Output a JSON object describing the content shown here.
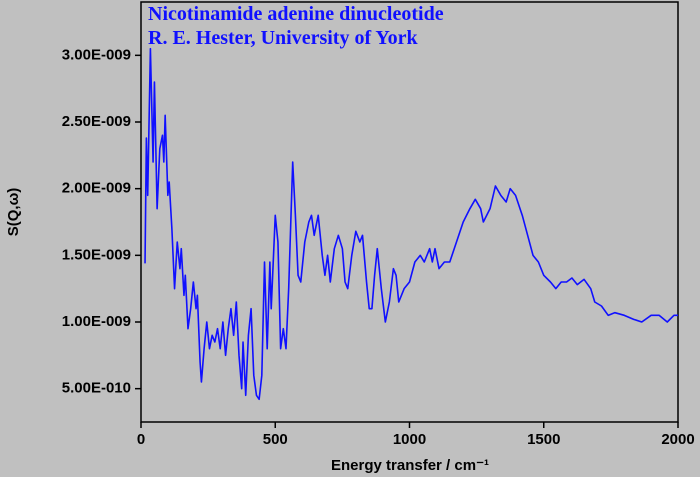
{
  "chart_data": {
    "type": "line",
    "annotations": [
      "Nicotinamide adenine dinucleotide",
      "R. E. Hester, University of York"
    ],
    "x_label": "Energy transfer / cm⁻¹",
    "y_label": "S(Q,ω)",
    "xlim": [
      0,
      2000
    ],
    "ylim": [
      2.5e-10,
      3.4e-09
    ],
    "xticks": [
      0,
      500,
      1000,
      1500,
      2000
    ],
    "yticks": [
      {
        "value": 5e-10,
        "label": "5.00E-010"
      },
      {
        "value": 1e-09,
        "label": "1.00E-009"
      },
      {
        "value": 1.5e-09,
        "label": "1.50E-009"
      },
      {
        "value": 2e-09,
        "label": "2.00E-009"
      },
      {
        "value": 2.5e-09,
        "label": "2.50E-009"
      },
      {
        "value": 3e-09,
        "label": "3.00E-009"
      }
    ],
    "series": [
      {
        "color": "#1010ff",
        "x": [
          15,
          20,
          25,
          35,
          45,
          50,
          60,
          70,
          80,
          85,
          90,
          100,
          105,
          115,
          125,
          135,
          145,
          150,
          160,
          165,
          175,
          185,
          195,
          205,
          210,
          220,
          225,
          235,
          245,
          255,
          265,
          275,
          285,
          295,
          305,
          315,
          325,
          335,
          345,
          355,
          365,
          375,
          380,
          390,
          400,
          410,
          420,
          430,
          440,
          450,
          460,
          470,
          480,
          485,
          500,
          510,
          520,
          530,
          540,
          550,
          565,
          575,
          585,
          595,
          610,
          625,
          635,
          645,
          660,
          675,
          685,
          695,
          705,
          720,
          735,
          750,
          760,
          770,
          785,
          800,
          815,
          825,
          840,
          850,
          860,
          870,
          880,
          895,
          910,
          925,
          940,
          950,
          960,
          980,
          1000,
          1020,
          1040,
          1055,
          1075,
          1085,
          1095,
          1110,
          1130,
          1150,
          1175,
          1200,
          1225,
          1245,
          1265,
          1275,
          1300,
          1320,
          1340,
          1360,
          1375,
          1395,
          1420,
          1440,
          1460,
          1480,
          1500,
          1525,
          1545,
          1565,
          1585,
          1605,
          1625,
          1650,
          1675,
          1690,
          1715,
          1740,
          1765,
          1800,
          1835,
          1865,
          1900,
          1930,
          1960,
          1985,
          2000
        ],
        "values": [
          1.44e-09,
          2.38e-09,
          1.95e-09,
          3.05e-09,
          2.2e-09,
          2.8e-09,
          1.85e-09,
          2.3e-09,
          2.4e-09,
          2.2e-09,
          2.55e-09,
          1.95e-09,
          2.05e-09,
          1.7e-09,
          1.25e-09,
          1.6e-09,
          1.4e-09,
          1.55e-09,
          1.2e-09,
          1.35e-09,
          9.5e-10,
          1.1e-09,
          1.3e-09,
          1.1e-09,
          1.2e-09,
          7e-10,
          5.5e-10,
          8e-10,
          1e-09,
          8e-10,
          9e-10,
          8.5e-10,
          9.5e-10,
          8e-10,
          1e-09,
          7.5e-10,
          9.5e-10,
          1.1e-09,
          9e-10,
          1.15e-09,
          7.5e-10,
          5e-10,
          8.5e-10,
          4.5e-10,
          9e-10,
          1.1e-09,
          6e-10,
          4.5e-10,
          4.2e-10,
          6e-10,
          1.45e-09,
          8e-10,
          1.45e-09,
          1.1e-09,
          1.8e-09,
          1.6e-09,
          8e-10,
          9.5e-10,
          8e-10,
          1.25e-09,
          2.2e-09,
          1.8e-09,
          1.35e-09,
          1.3e-09,
          1.6e-09,
          1.75e-09,
          1.8e-09,
          1.65e-09,
          1.8e-09,
          1.5e-09,
          1.35e-09,
          1.5e-09,
          1.3e-09,
          1.55e-09,
          1.65e-09,
          1.55e-09,
          1.3e-09,
          1.25e-09,
          1.5e-09,
          1.68e-09,
          1.6e-09,
          1.65e-09,
          1.3e-09,
          1.1e-09,
          1.1e-09,
          1.35e-09,
          1.55e-09,
          1.25e-09,
          1e-09,
          1.15e-09,
          1.4e-09,
          1.35e-09,
          1.15e-09,
          1.25e-09,
          1.3e-09,
          1.45e-09,
          1.5e-09,
          1.45e-09,
          1.55e-09,
          1.45e-09,
          1.55e-09,
          1.4e-09,
          1.45e-09,
          1.45e-09,
          1.6e-09,
          1.75e-09,
          1.85e-09,
          1.92e-09,
          1.85e-09,
          1.75e-09,
          1.85e-09,
          2.02e-09,
          1.95e-09,
          1.9e-09,
          2e-09,
          1.95e-09,
          1.8e-09,
          1.65e-09,
          1.5e-09,
          1.45e-09,
          1.35e-09,
          1.3e-09,
          1.25e-09,
          1.3e-09,
          1.3e-09,
          1.33e-09,
          1.28e-09,
          1.32e-09,
          1.25e-09,
          1.15e-09,
          1.12e-09,
          1.05e-09,
          1.07e-09,
          1.05e-09,
          1.02e-09,
          1e-09,
          1.05e-09,
          1.05e-09,
          1e-09,
          1.05e-09,
          1.05e-09
        ]
      }
    ]
  }
}
